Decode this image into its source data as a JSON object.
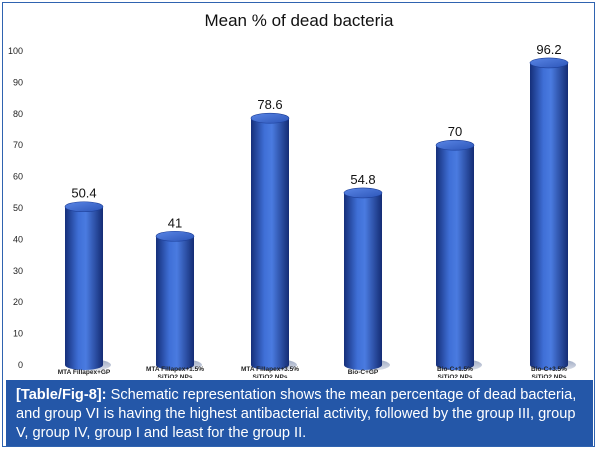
{
  "chart_data": {
    "type": "bar",
    "title": "Mean % of dead bacteria",
    "xlabel": "",
    "ylabel": "",
    "ylim": [
      0,
      100
    ],
    "yticks": [
      0,
      10,
      20,
      30,
      40,
      50,
      60,
      70,
      80,
      90,
      100
    ],
    "grid": false,
    "categories": [
      [
        "MTA Fillapex+GP"
      ],
      [
        "MTA Fillapex+1.5%",
        "SiTiO2 NPs"
      ],
      [
        "MTA Fillapex+3.5%",
        "SiTiO2 NPs"
      ],
      [
        "Bio-C+GP"
      ],
      [
        "Bio-C+1.5%",
        "SiTiO2 NPs"
      ],
      [
        "Bio-C+3.5%",
        "SiTiO2 NPs"
      ]
    ],
    "values": [
      50.4,
      41,
      78.6,
      54.8,
      70,
      96.2
    ],
    "value_labels": [
      "50.4",
      "41",
      "78.6",
      "54.8",
      "70",
      "96.2"
    ],
    "bar_color": "#2a4fb0"
  },
  "caption": {
    "label": "[Table/Fig-8]:",
    "text": " Schematic representation shows the mean percentage of dead bacteria, and group VI is having the highest antibacterial activity, followed by the group III, group V, group IV, group I and least for the group II."
  }
}
